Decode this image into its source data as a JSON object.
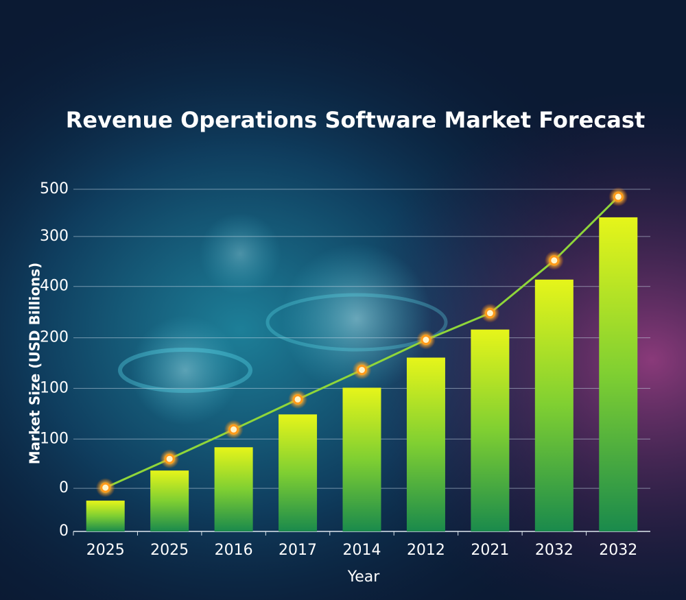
{
  "chart_data": {
    "type": "combo",
    "title": "Revenue Operations Software Market Forecast",
    "x_label": "Year",
    "y_label": "Market Size (USD Billions)",
    "categories": [
      "2025",
      "2025",
      "2016",
      "2017",
      "2014",
      "2012",
      "2021",
      "2032",
      "2032"
    ],
    "series": [
      {
        "type": "bar",
        "color": "#9ed62a",
        "values": [
          45,
          89,
          123,
          171,
          210,
          254,
          295,
          368,
          459
        ]
      },
      {
        "type": "line",
        "color": "#8fd63a",
        "marker_color": "#ff9a1a",
        "values": [
          64,
          106,
          149,
          193,
          236,
          280,
          319,
          396,
          489
        ]
      }
    ],
    "ylim": [
      0,
      500
    ],
    "yticks": [
      {
        "value": 0,
        "label": "0"
      },
      {
        "value": 63,
        "label": "0"
      },
      {
        "value": 135,
        "label": "100"
      },
      {
        "value": 209,
        "label": "100"
      },
      {
        "value": 283,
        "label": "200"
      },
      {
        "value": 358,
        "label": "400"
      },
      {
        "value": 431,
        "label": "300"
      },
      500
    ],
    "grid": true
  }
}
